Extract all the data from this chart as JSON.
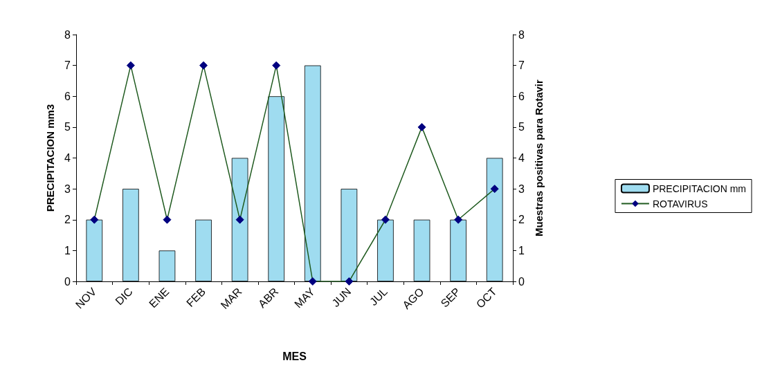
{
  "chart_data": {
    "type": "bar",
    "xlabel": "MES",
    "ylabel": "PRECIPITACION mm3",
    "y2label": "Muestras positivas para Rotavir",
    "categories": [
      "NOV",
      "DIC",
      "ENE",
      "FEB",
      "MAR",
      "ABR",
      "MAY",
      "JUN",
      "JUL",
      "AGO",
      "SEP",
      "OCT"
    ],
    "series": [
      {
        "name": "PRECIPITACION mm",
        "color": "#9fdcf0",
        "values": [
          2,
          3,
          1,
          2,
          4,
          6,
          7,
          3,
          2,
          2,
          2,
          4
        ]
      },
      {
        "name": "ROTAVIRUS",
        "type": "line",
        "axis": "y2",
        "color": "#1f5a1f",
        "marker": "diamond",
        "values": [
          2,
          7,
          2,
          7,
          2,
          7,
          0,
          0,
          2,
          5,
          2,
          3
        ]
      }
    ],
    "ylim": [
      0,
      8
    ],
    "yticks": [
      0,
      1,
      2,
      3,
      4,
      5,
      6,
      7,
      8
    ],
    "y2lim": [
      0,
      8
    ],
    "y2ticks": [
      0,
      1,
      2,
      3,
      4,
      5,
      6,
      7,
      8
    ],
    "grid": false,
    "legend": "right"
  }
}
